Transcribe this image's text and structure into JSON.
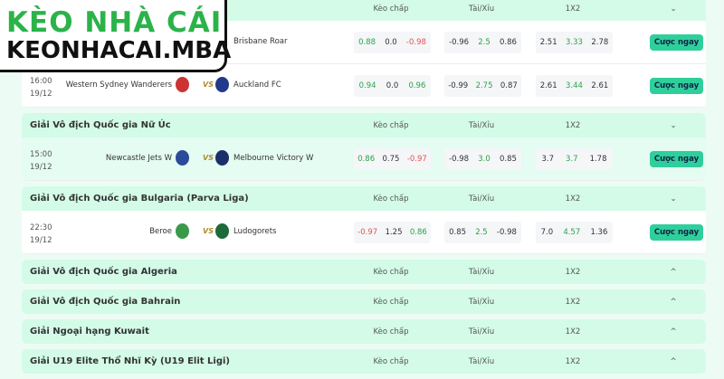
{
  "logo": {
    "line1": "KÈO NHÀ CÁI",
    "line2": "KEONHACAI.MBA"
  },
  "columns": {
    "handicap": "Kèo chấp",
    "overunder": "Tài/Xỉu",
    "x12": "1X2"
  },
  "bet_label": "Cược ngay",
  "vs": "VS",
  "leagues": [
    {
      "name": "",
      "expanded": true,
      "matches": [
        {
          "time": "",
          "date": "",
          "home": "",
          "away": "Brisbane Roar",
          "hc": [
            "0.88",
            "0.0",
            "-0.98"
          ],
          "ou": [
            "-0.96",
            "2.5",
            "0.86"
          ],
          "x12": [
            "2.51",
            "3.33",
            "2.78"
          ]
        },
        {
          "time": "16:00",
          "date": "19/12",
          "home": "Western Sydney Wanderers",
          "away": "Auckland FC",
          "hc": [
            "0.94",
            "0.0",
            "0.96"
          ],
          "ou": [
            "-0.99",
            "2.75",
            "0.87"
          ],
          "x12": [
            "2.61",
            "3.44",
            "2.61"
          ]
        }
      ]
    },
    {
      "name": "Giải Vô địch Quốc gia Nữ Úc",
      "expanded": true,
      "matches": [
        {
          "time": "15:00",
          "date": "19/12",
          "home": "Newcastle Jets W",
          "away": "Melbourne Victory W",
          "hc": [
            "0.86",
            "0.75",
            "-0.97"
          ],
          "ou": [
            "-0.98",
            "3.0",
            "0.85"
          ],
          "x12": [
            "3.7",
            "3.7",
            "1.78"
          ]
        }
      ]
    },
    {
      "name": "Giải Vô địch Quốc gia Bulgaria (Parva Liga)",
      "expanded": true,
      "matches": [
        {
          "time": "22:30",
          "date": "19/12",
          "home": "Beroe",
          "away": "Ludogorets",
          "hc": [
            "-0.97",
            "1.25",
            "0.86"
          ],
          "ou": [
            "0.85",
            "2.5",
            "-0.98"
          ],
          "x12": [
            "7.0",
            "4.57",
            "1.36"
          ]
        }
      ]
    },
    {
      "name": "Giải Vô địch Quốc gia Algeria",
      "expanded": false
    },
    {
      "name": "Giải Vô địch Quốc gia Bahrain",
      "expanded": false
    },
    {
      "name": "Giải Ngoại hạng Kuwait",
      "expanded": false
    },
    {
      "name": "Giải U19 Elite Thổ Nhĩ Kỳ (U19 Elit Ligi)",
      "expanded": false
    }
  ]
}
